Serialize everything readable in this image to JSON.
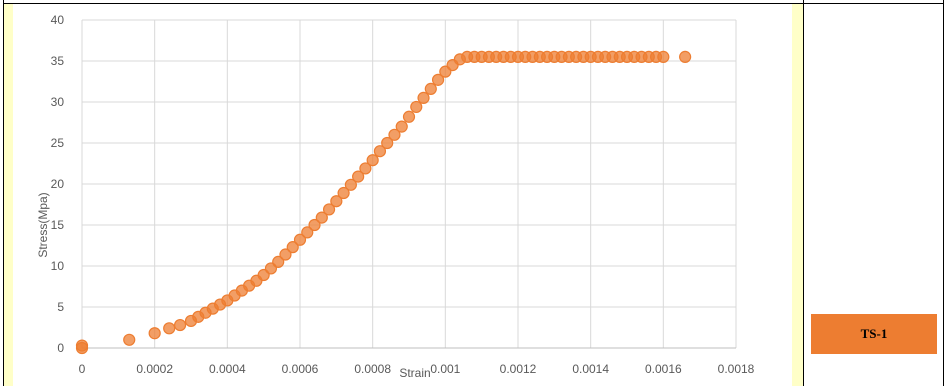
{
  "badge": {
    "label": "TS-1",
    "color": "#ed7d31"
  },
  "chart_data": {
    "type": "scatter",
    "xlabel": "Strain",
    "ylabel": "Stress(Mpa)",
    "xlim": [
      0,
      0.0018
    ],
    "ylim": [
      0,
      40
    ],
    "x_ticks": [
      "0",
      "0.0002",
      "0.0004",
      "0.0006",
      "0.0008",
      "0.001",
      "0.0012",
      "0.0014",
      "0.0016",
      "0.0018"
    ],
    "y_ticks": [
      "0",
      "5",
      "10",
      "15",
      "20",
      "25",
      "30",
      "35",
      "40"
    ],
    "grid": true,
    "marker_color": "#ed7d31",
    "series": [
      {
        "x": [
          0,
          0,
          0.00013,
          0.0002,
          0.00024,
          0.00027,
          0.0003,
          0.00032,
          0.00034,
          0.00036,
          0.00038,
          0.0004,
          0.00042,
          0.00044,
          0.00046,
          0.00048,
          0.0005,
          0.00052,
          0.00054,
          0.00056,
          0.00058,
          0.0006,
          0.00062,
          0.00064,
          0.00066,
          0.00068,
          0.0007,
          0.00072,
          0.00074,
          0.00076,
          0.00078,
          0.0008,
          0.00082,
          0.00084,
          0.00086,
          0.00088,
          0.0009,
          0.00092,
          0.00094,
          0.00096,
          0.00098,
          0.001,
          0.00102,
          0.00104,
          0.00106,
          0.00108,
          0.0011,
          0.00112,
          0.00114,
          0.00116,
          0.00118,
          0.0012,
          0.00122,
          0.00124,
          0.00126,
          0.00128,
          0.0013,
          0.00132,
          0.00134,
          0.00136,
          0.00138,
          0.0014,
          0.00142,
          0.00144,
          0.00146,
          0.00148,
          0.0015,
          0.00152,
          0.00154,
          0.00156,
          0.00158,
          0.0016,
          0.00166
        ],
        "y": [
          0,
          0.3,
          1.0,
          1.8,
          2.4,
          2.8,
          3.3,
          3.8,
          4.3,
          4.8,
          5.3,
          5.8,
          6.4,
          7.0,
          7.6,
          8.2,
          8.9,
          9.7,
          10.5,
          11.4,
          12.3,
          13.2,
          14.1,
          15.0,
          15.9,
          16.9,
          17.9,
          18.9,
          19.9,
          20.9,
          21.9,
          22.9,
          24.0,
          25.0,
          26.0,
          27.0,
          28.2,
          29.4,
          30.5,
          31.6,
          32.7,
          33.7,
          34.5,
          35.2,
          35.5,
          35.5,
          35.5,
          35.5,
          35.5,
          35.5,
          35.5,
          35.5,
          35.5,
          35.5,
          35.5,
          35.5,
          35.5,
          35.5,
          35.5,
          35.5,
          35.5,
          35.5,
          35.5,
          35.5,
          35.5,
          35.5,
          35.5,
          35.5,
          35.5,
          35.5,
          35.5,
          35.5,
          35.5
        ]
      }
    ]
  }
}
